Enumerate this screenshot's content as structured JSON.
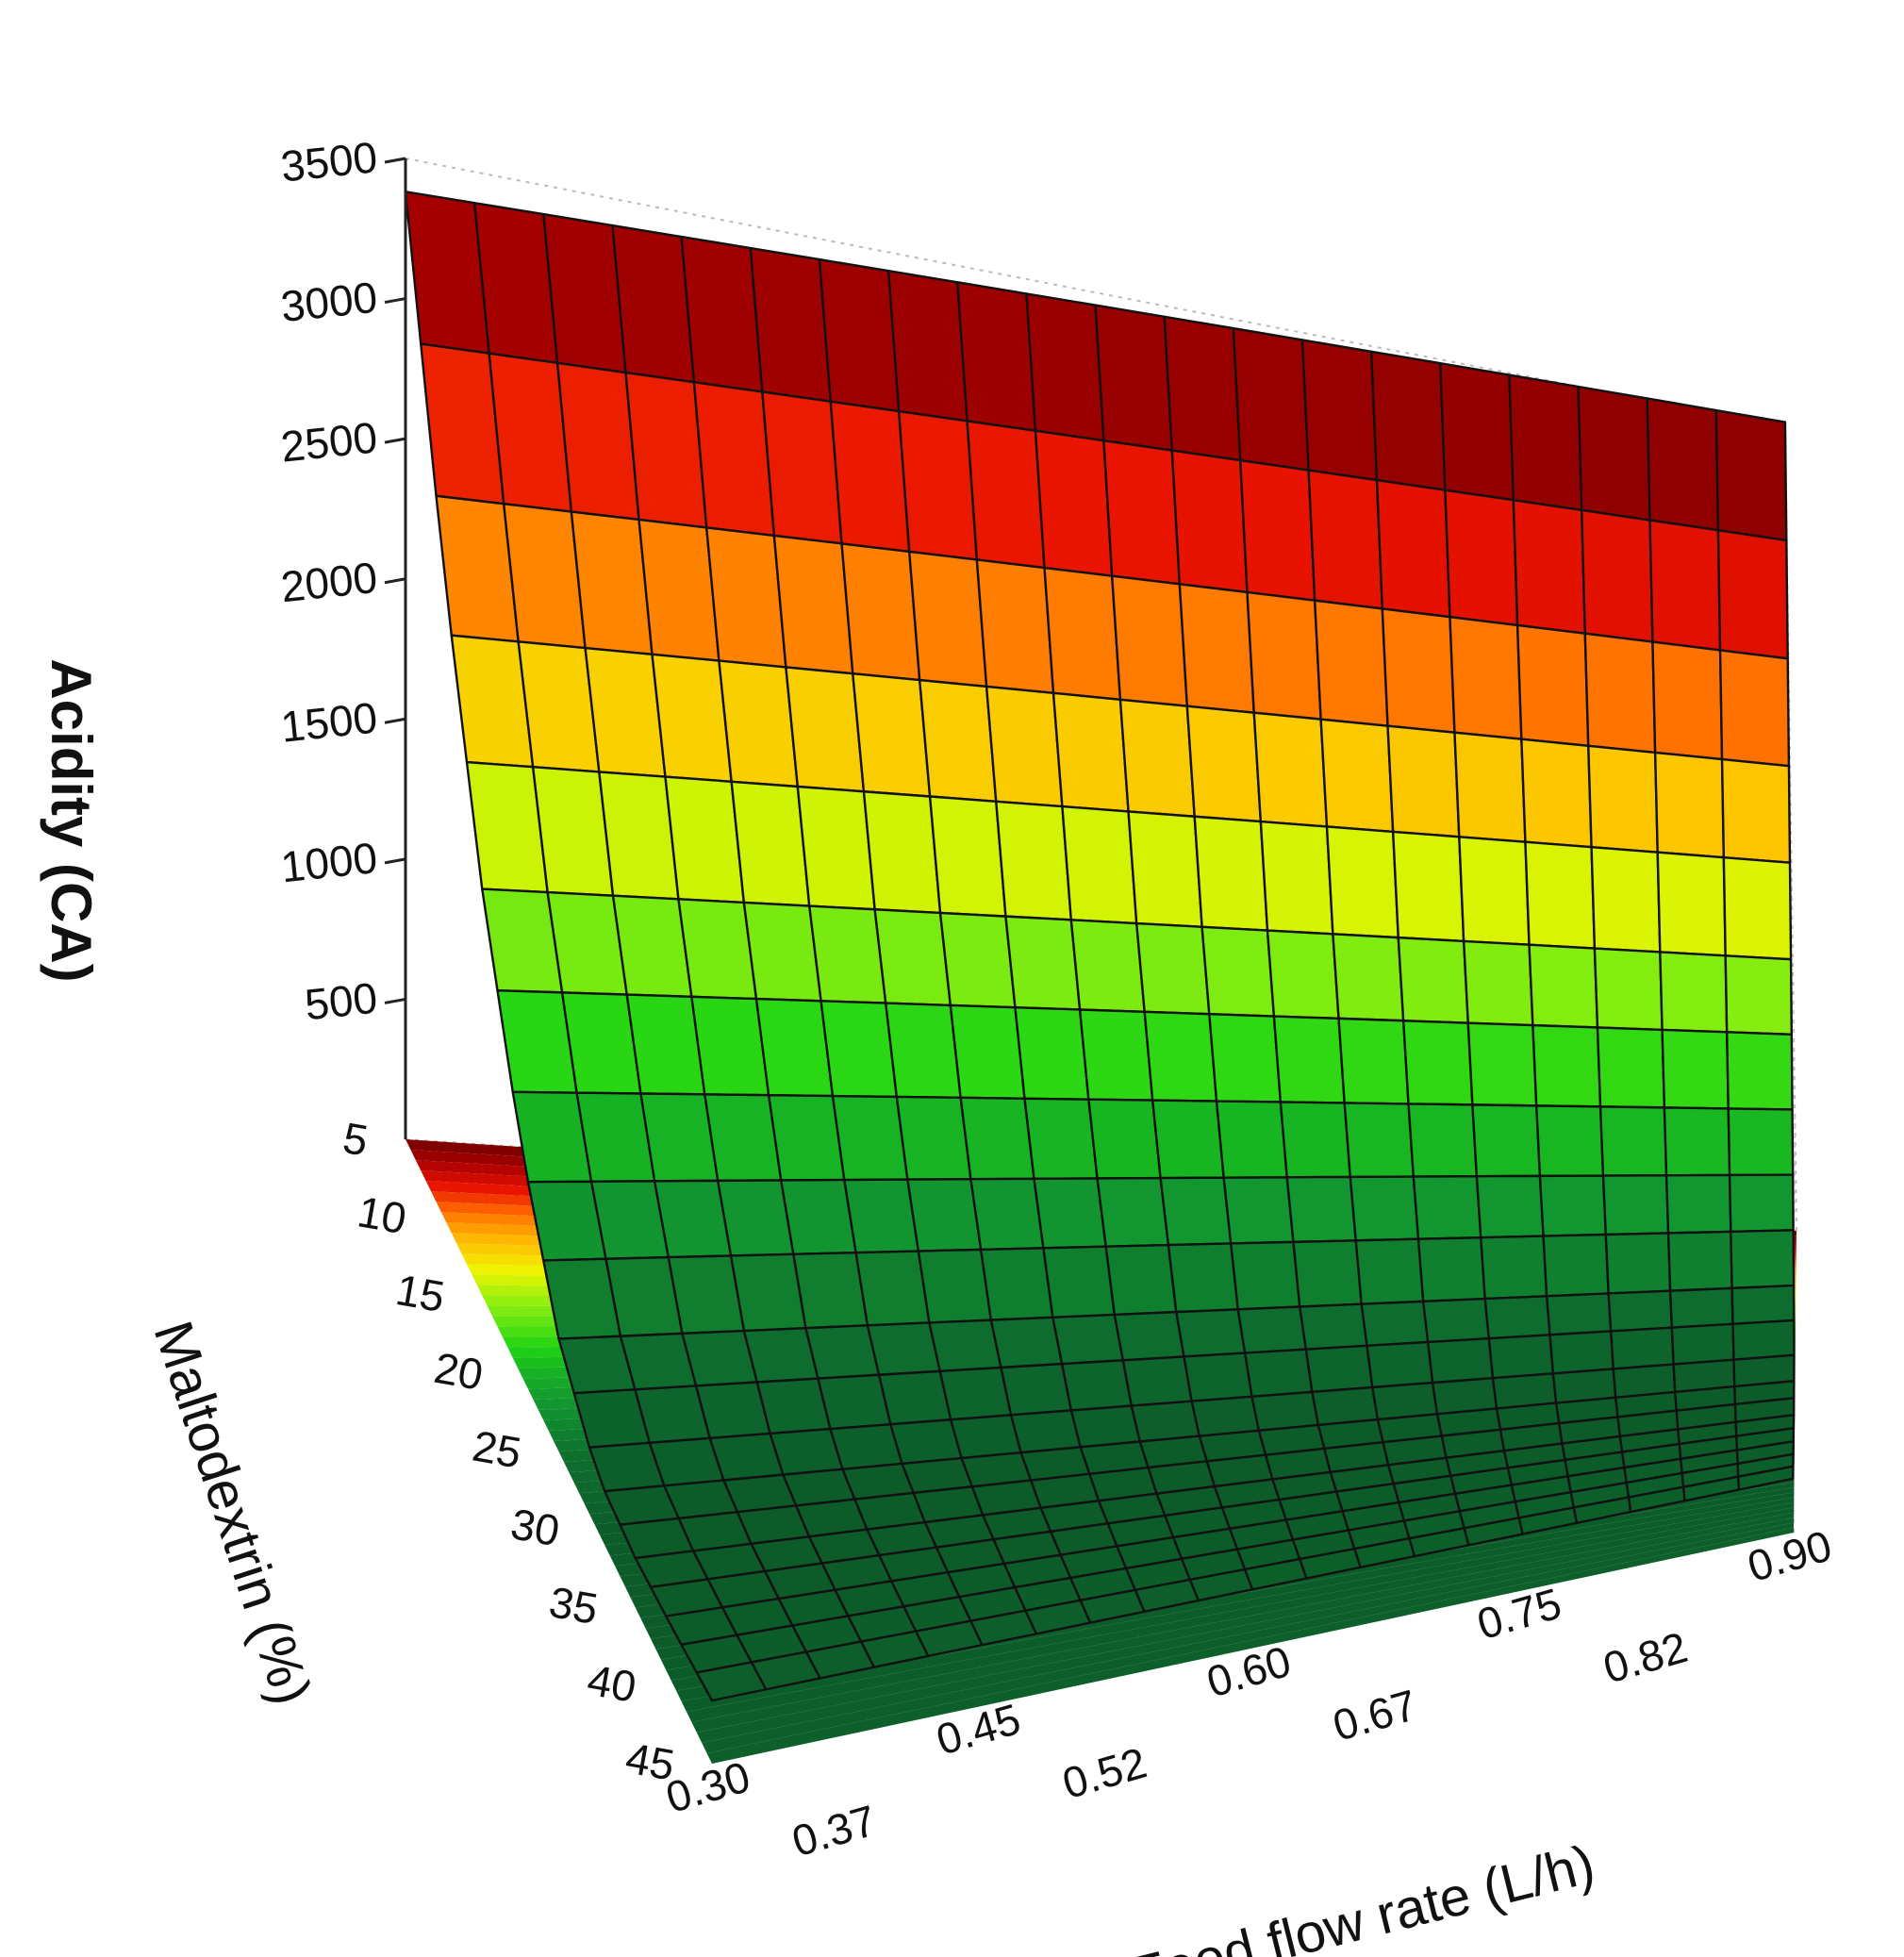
{
  "chart_data": {
    "type": "surface3d",
    "zlabel": "Acidity (CA)",
    "xlabel": "Feed flow rate (L/h)",
    "ylabel": "Maltodextrin (%)",
    "x_ticks": [
      "0.30",
      "0.37",
      "0.45",
      "0.52",
      "0.60",
      "0.67",
      "0.75",
      "0.82",
      "0.90"
    ],
    "y_ticks": [
      "5",
      "10",
      "15",
      "20",
      "25",
      "30",
      "35",
      "40",
      "45"
    ],
    "z_ticks": [
      "500",
      "1000",
      "1500",
      "2000",
      "2500",
      "3000",
      "3500"
    ],
    "x_range": [
      0.3,
      0.9
    ],
    "y_range": [
      5,
      45
    ],
    "z_range": [
      0,
      3500
    ],
    "colormap": [
      "#0a4a24",
      "#0e6a2e",
      "#129a30",
      "#1fd414",
      "#8cef10",
      "#eef500",
      "#ffbb00",
      "#ff6a00",
      "#e81200",
      "#a80000",
      "#6a0000"
    ],
    "surface_grid_lines": 20,
    "surface": {
      "model": "quadratic in Maltodextrin, near-constant in feed flow rate",
      "acidity_at_maltodextrin": [
        {
          "maltodextrin": 5,
          "acidity": 3450
        },
        {
          "maltodextrin": 10,
          "acidity": 2350
        },
        {
          "maltodextrin": 15,
          "acidity": 1480
        },
        {
          "maltodextrin": 20,
          "acidity": 840
        },
        {
          "maltodextrin": 25,
          "acidity": 410
        },
        {
          "maltodextrin": 30,
          "acidity": 200
        },
        {
          "maltodextrin": 35,
          "acidity": 180
        },
        {
          "maltodextrin": 40,
          "acidity": 200
        },
        {
          "maltodextrin": 45,
          "acidity": 230
        }
      ]
    },
    "grid": true
  }
}
